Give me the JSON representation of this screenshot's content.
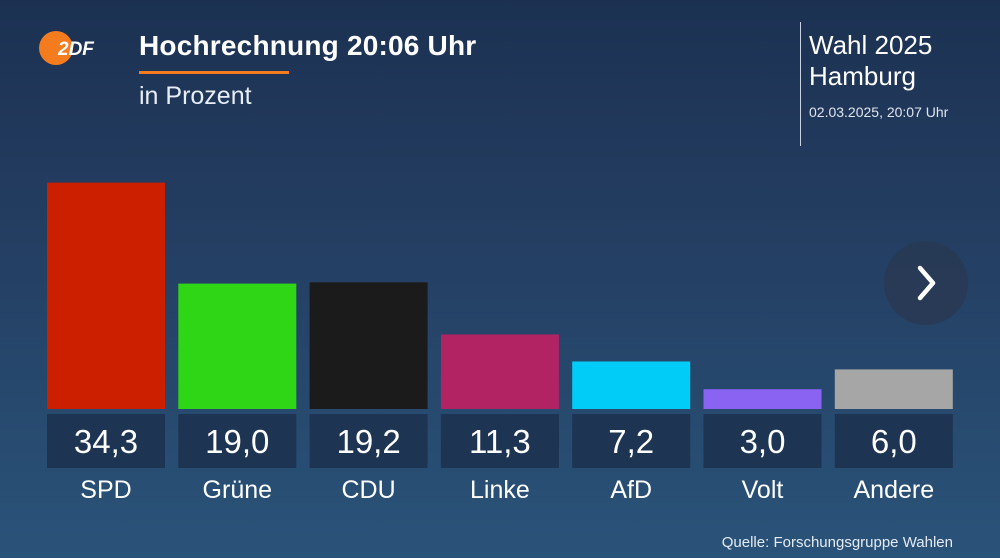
{
  "header": {
    "logo_text": "2DF",
    "title": "Hochrechnung 20:06 Uhr",
    "subtitle": "in Prozent"
  },
  "election": {
    "line1": "Wahl 2025",
    "line2": "Hamburg",
    "timestamp": "02.03.2025, 20:07 Uhr"
  },
  "navigation": {
    "next_icon": "chevron-right-icon"
  },
  "footer": {
    "source": "Quelle: Forschungsgruppe Wahlen"
  },
  "colors": {
    "accent": "#f57b1f",
    "value_box": "#1d3452"
  },
  "chart_data": {
    "type": "bar",
    "title": "Hochrechnung 20:06 Uhr",
    "ylabel": "in Prozent",
    "ylim": [
      0,
      35
    ],
    "grid": false,
    "categories": [
      "SPD",
      "Grüne",
      "CDU",
      "Linke",
      "AfD",
      "Volt",
      "Andere"
    ],
    "values": [
      34.3,
      19.0,
      19.2,
      11.3,
      7.2,
      3.0,
      6.0
    ],
    "value_labels": [
      "34,3",
      "19,0",
      "19,2",
      "11,3",
      "7,2",
      "3,0",
      "6,0"
    ],
    "colors": [
      "#cc1f00",
      "#2fd615",
      "#1b1b1b",
      "#b22364",
      "#00ccf8",
      "#8a63f2",
      "#a6a6a6"
    ]
  }
}
